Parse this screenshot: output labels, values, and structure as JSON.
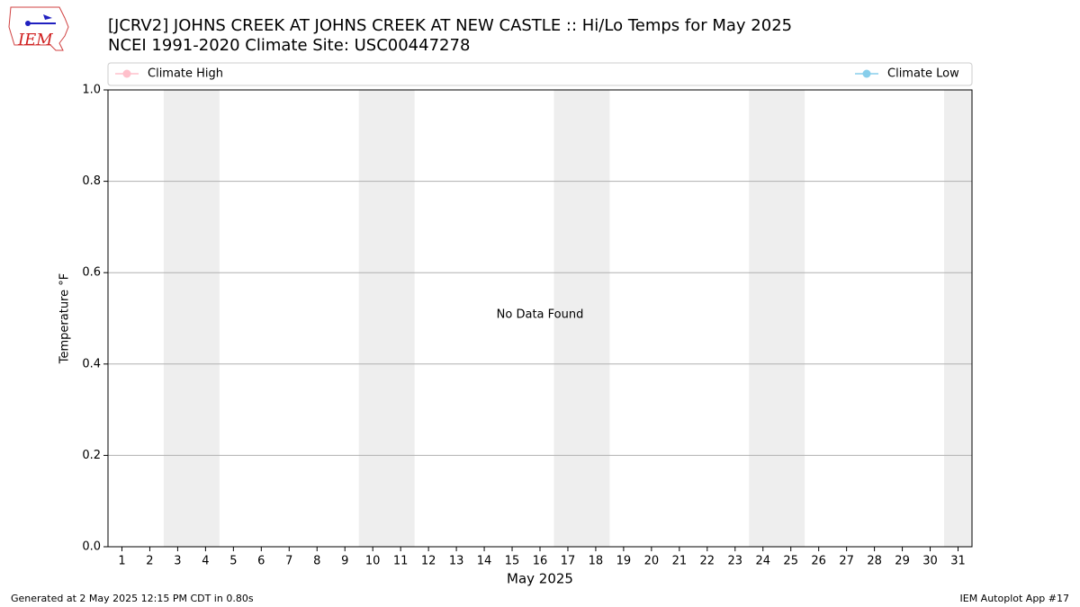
{
  "chart_data": {
    "type": "line",
    "title": "[JCRV2] JOHNS CREEK  AT JOHNS CREEK AT NEW CASTLE :: Hi/Lo Temps for May 2025",
    "subtitle": "NCEI 1991-2020 Climate Site: USC00447278",
    "logo_text": "IEM",
    "x_label": "May 2025",
    "y_label": "Temperature °F",
    "annotation": "No Data Found",
    "footer_left": "Generated at 2 May 2025 12:15 PM CDT in 0.80s",
    "footer_right": "IEM Autoplot App #17",
    "x": [
      1,
      2,
      3,
      4,
      5,
      6,
      7,
      8,
      9,
      10,
      11,
      12,
      13,
      14,
      15,
      16,
      17,
      18,
      19,
      20,
      21,
      22,
      23,
      24,
      25,
      26,
      27,
      28,
      29,
      30,
      31
    ],
    "series": [
      {
        "name": "Climate High",
        "color": "#ffc0cb",
        "values": [
          null,
          null,
          null,
          null,
          null,
          null,
          null,
          null,
          null,
          null,
          null,
          null,
          null,
          null,
          null,
          null,
          null,
          null,
          null,
          null,
          null,
          null,
          null,
          null,
          null,
          null,
          null,
          null,
          null,
          null,
          null
        ]
      },
      {
        "name": "Climate Low",
        "color": "#87ceeb",
        "values": [
          null,
          null,
          null,
          null,
          null,
          null,
          null,
          null,
          null,
          null,
          null,
          null,
          null,
          null,
          null,
          null,
          null,
          null,
          null,
          null,
          null,
          null,
          null,
          null,
          null,
          null,
          null,
          null,
          null,
          null,
          null
        ]
      }
    ],
    "shaded_ranges": [
      [
        2.5,
        4.5
      ],
      [
        9.5,
        11.5
      ],
      [
        16.5,
        18.5
      ],
      [
        23.5,
        25.5
      ],
      [
        30.5,
        31.5
      ]
    ],
    "shade_color": "#eeeeee",
    "xlim": [
      0.5,
      31.5
    ],
    "ylim": [
      0,
      1
    ],
    "yticks": [
      {
        "value": 0,
        "label": "0.0"
      },
      {
        "value": 0.2,
        "label": "0.2"
      },
      {
        "value": 0.4,
        "label": "0.4"
      },
      {
        "value": 0.6,
        "label": "0.6"
      },
      {
        "value": 0.8,
        "label": "0.8"
      },
      {
        "value": 1,
        "label": "1.0"
      }
    ],
    "grid": true
  }
}
